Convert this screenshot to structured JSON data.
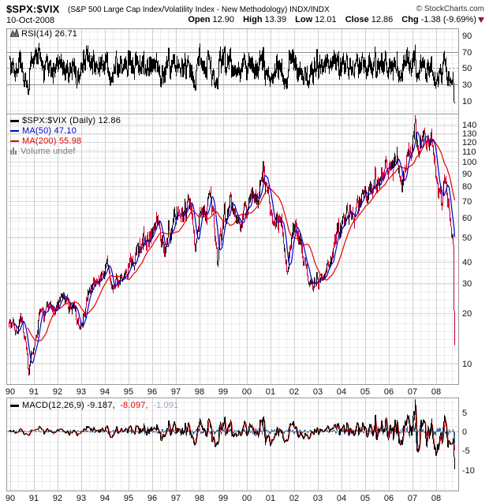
{
  "header": {
    "symbol": "$SPX:$VIX",
    "description": "(S&P 500 Large Cap Index/Volatility Index - New Methodology) INDX/INDX",
    "copyright": "© StockCharts.com",
    "date": "10-Oct-2008",
    "quote": {
      "open_label": "Open",
      "open_value": "12.90",
      "high_label": "High",
      "high_value": "13.39",
      "low_label": "Low",
      "low_value": "12.01",
      "close_label": "Close",
      "close_value": "12.86",
      "chg_label": "Chg",
      "chg_value": "-1.38 (-9.69%)",
      "chg_direction": "down"
    }
  },
  "legends": {
    "rsi": "RSI(14) 26.71",
    "price_main": "$SPX:$VIX (Daily) 12.86",
    "ma50": "MA(50) 47.10",
    "ma200": "MA(200) 55.98",
    "volume": "Volume undef",
    "macd_black": "MACD(12,26,9) -9.187,",
    "macd_red": "-8.097,",
    "macd_gray": "-1.091"
  },
  "colors": {
    "price_up_bar": "#000000",
    "price_down_bar": "#cc0033",
    "ma50": "#0000cc",
    "ma200": "#e60000",
    "rsi_line": "#000000",
    "macd_line": "#000000",
    "macd_signal": "#dd0000",
    "macd_hist": "#44688f",
    "macd_hist_legend": "#9aa8b8",
    "chg_triangle": "#8b1a2f",
    "panel_border": "#999999",
    "grid_fine": "#ececec",
    "grid_year": "#cfcfcf",
    "grid_tick": "#dadada",
    "ref_line": "#8f8f8f",
    "ref_dash": "#9f9f9f",
    "volume_legend": "#808080"
  },
  "chart_data": {
    "type": "line",
    "symbol": "$SPX:$VIX",
    "timeframe": "Daily",
    "date_range": [
      "Jan-1990",
      "10-Oct-2008"
    ],
    "x_tick_labels": [
      "90",
      "91",
      "92",
      "93",
      "94",
      "95",
      "96",
      "97",
      "98",
      "99",
      "00",
      "01",
      "02",
      "03",
      "04",
      "05",
      "06",
      "07",
      "08"
    ],
    "panels": [
      {
        "name": "RSI",
        "params": "14",
        "last_value": 26.71,
        "y_ticks": [
          90,
          70,
          50,
          30,
          10
        ],
        "reference_lines": {
          "overbought": 70,
          "midline_dashed": 50,
          "oversold": 30
        },
        "behavior": "oscillates roughly 25-80 around 50 for whole period, ends at 26.71"
      },
      {
        "name": "price",
        "scale": "log",
        "y_ticks": [
          140,
          130,
          120,
          110,
          100,
          90,
          80,
          70,
          60,
          50,
          40,
          30,
          20,
          10
        ],
        "volume": "undef",
        "series": [
          {
            "name": "$SPX:$VIX close",
            "style": "daily red/black bars",
            "last_value": 12.86,
            "anchor_points": [
              [
                1989.93,
                17
              ],
              [
                1990.1,
                18
              ],
              [
                1990.3,
                16
              ],
              [
                1990.5,
                19
              ],
              [
                1990.62,
                15
              ],
              [
                1990.7,
                11
              ],
              [
                1990.8,
                8.6
              ],
              [
                1990.9,
                11
              ],
              [
                1991.0,
                12
              ],
              [
                1991.1,
                14
              ],
              [
                1991.25,
                19
              ],
              [
                1991.45,
                22
              ],
              [
                1991.7,
                21
              ],
              [
                1991.9,
                20
              ],
              [
                1992.2,
                25
              ],
              [
                1992.5,
                23
              ],
              [
                1992.75,
                21
              ],
              [
                1992.95,
                15.5
              ],
              [
                1993.1,
                18
              ],
              [
                1993.3,
                27
              ],
              [
                1993.6,
                31
              ],
              [
                1993.9,
                34
              ],
              [
                1994.1,
                38
              ],
              [
                1994.3,
                28
              ],
              [
                1994.6,
                31
              ],
              [
                1994.9,
                35
              ],
              [
                1995.2,
                40
              ],
              [
                1995.6,
                47
              ],
              [
                1995.9,
                53
              ],
              [
                1996.1,
                58
              ],
              [
                1996.35,
                52
              ],
              [
                1996.55,
                44
              ],
              [
                1996.8,
                54
              ],
              [
                1997.0,
                60
              ],
              [
                1997.25,
                65
              ],
              [
                1997.55,
                72
              ],
              [
                1997.7,
                60
              ],
              [
                1997.82,
                45
              ],
              [
                1998.0,
                58
              ],
              [
                1998.2,
                66
              ],
              [
                1998.45,
                74
              ],
              [
                1998.6,
                66
              ],
              [
                1998.78,
                35
              ],
              [
                1998.95,
                52
              ],
              [
                1999.1,
                62
              ],
              [
                1999.3,
                70
              ],
              [
                1999.55,
                62
              ],
              [
                1999.75,
                57
              ],
              [
                1999.95,
                67
              ],
              [
                2000.15,
                76
              ],
              [
                2000.45,
                68
              ],
              [
                2000.7,
                95
              ],
              [
                2000.85,
                78
              ],
              [
                2001.0,
                70
              ],
              [
                2001.2,
                56
              ],
              [
                2001.45,
                60
              ],
              [
                2001.72,
                33
              ],
              [
                2001.9,
                50
              ],
              [
                2002.1,
                55
              ],
              [
                2002.3,
                46
              ],
              [
                2002.55,
                35
              ],
              [
                2002.75,
                28
              ],
              [
                2002.9,
                33
              ],
              [
                2003.1,
                30
              ],
              [
                2003.3,
                35
              ],
              [
                2003.6,
                45
              ],
              [
                2003.9,
                53
              ],
              [
                2004.2,
                59
              ],
              [
                2004.5,
                63
              ],
              [
                2004.8,
                69
              ],
              [
                2005.1,
                75
              ],
              [
                2005.4,
                81
              ],
              [
                2005.7,
                87
              ],
              [
                2006.0,
                95
              ],
              [
                2006.35,
                107
              ],
              [
                2006.5,
                79
              ],
              [
                2006.75,
                99
              ],
              [
                2007.0,
                120
              ],
              [
                2007.13,
                139
              ],
              [
                2007.25,
                105
              ],
              [
                2007.45,
                121
              ],
              [
                2007.55,
                133
              ],
              [
                2007.7,
                109
              ],
              [
                2007.82,
                127
              ],
              [
                2007.95,
                99
              ],
              [
                2008.1,
                77
              ],
              [
                2008.25,
                69
              ],
              [
                2008.35,
                81
              ],
              [
                2008.5,
                71
              ],
              [
                2008.62,
                59
              ],
              [
                2008.72,
                50
              ],
              [
                2008.75,
                42
              ],
              [
                2008.765,
                20
              ],
              [
                2008.78,
                12.86
              ]
            ]
          },
          {
            "name": "MA(50)",
            "derived": "50-day simple moving average",
            "last_value": 47.1
          },
          {
            "name": "MA(200)",
            "derived": "200-day simple moving average",
            "last_value": 55.98
          }
        ]
      },
      {
        "name": "MACD",
        "params": "12,26,9",
        "last_values": {
          "macd": -9.187,
          "signal": -8.097,
          "histogram": -1.091
        },
        "y_ticks": [
          5,
          0,
          -5,
          -10
        ],
        "behavior": "amplitude grows from ±2 in early 1990s to ±10 by 2007-2008, plunges at end"
      }
    ]
  }
}
